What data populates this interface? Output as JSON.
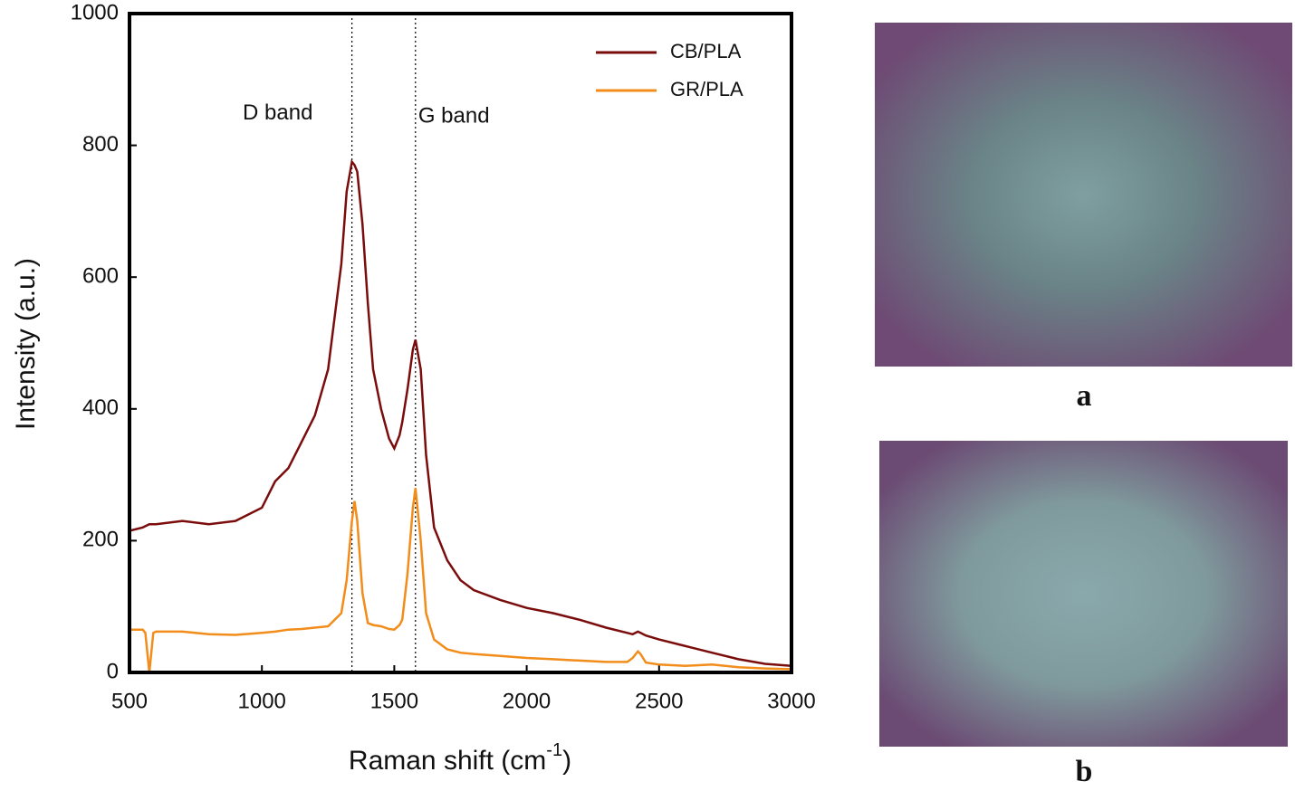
{
  "chart_data": {
    "type": "line",
    "x_label": {
      "text": "Raman shift (cm",
      "superscript": "-1",
      "suffix": ")"
    },
    "y_label": "Intensity (a.u.)",
    "x": [
      500,
      550,
      560,
      575,
      590,
      600,
      700,
      800,
      900,
      1000,
      1050,
      1100,
      1150,
      1200,
      1250,
      1300,
      1320,
      1340,
      1350,
      1360,
      1380,
      1400,
      1420,
      1450,
      1480,
      1500,
      1520,
      1530,
      1550,
      1570,
      1580,
      1600,
      1620,
      1650,
      1700,
      1750,
      1800,
      1900,
      2000,
      2100,
      2200,
      2300,
      2380,
      2400,
      2420,
      2430,
      2450,
      2500,
      2600,
      2700,
      2800,
      2900,
      3000
    ],
    "series": [
      {
        "name": "CB/PLA",
        "color": "#7b0c0c",
        "values": [
          215,
          220,
          222,
          225,
          225,
          225,
          230,
          225,
          230,
          250,
          290,
          310,
          350,
          390,
          460,
          620,
          730,
          775,
          770,
          760,
          680,
          560,
          460,
          400,
          355,
          340,
          360,
          380,
          430,
          490,
          505,
          460,
          330,
          220,
          170,
          140,
          125,
          110,
          98,
          90,
          80,
          68,
          60,
          58,
          62,
          60,
          56,
          50,
          40,
          30,
          20,
          13,
          10
        ]
      },
      {
        "name": "GR/PLA",
        "color": "#f28c1a",
        "values": [
          65,
          65,
          60,
          0,
          60,
          62,
          62,
          58,
          57,
          60,
          62,
          65,
          66,
          68,
          70,
          90,
          140,
          230,
          260,
          230,
          120,
          75,
          72,
          70,
          66,
          65,
          72,
          80,
          150,
          250,
          280,
          200,
          90,
          50,
          35,
          30,
          28,
          25,
          22,
          20,
          18,
          16,
          16,
          22,
          32,
          28,
          15,
          12,
          10,
          12,
          8,
          6,
          5
        ]
      }
    ],
    "xlim": [
      500,
      3000
    ],
    "ylim": [
      0,
      1000
    ],
    "xticks": [
      500,
      1000,
      1500,
      2000,
      2500,
      3000
    ],
    "yticks": [
      0,
      200,
      400,
      600,
      800,
      1000
    ],
    "reference_lines": [
      1340,
      1580
    ],
    "annotations": [
      {
        "text": "D band",
        "x": 1060,
        "y": 848
      },
      {
        "text": "G band",
        "x": 1725,
        "y": 843
      }
    ],
    "legend": "upper right"
  },
  "figure_panels": [
    "a",
    "b"
  ]
}
